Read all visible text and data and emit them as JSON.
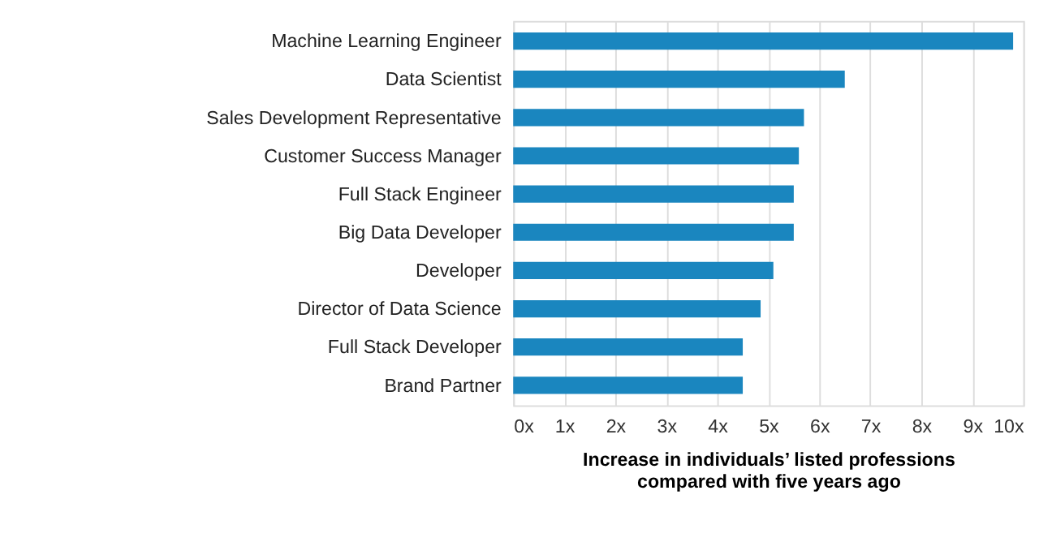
{
  "chart_data": {
    "type": "bar",
    "orientation": "horizontal",
    "categories": [
      "Machine Learning Engineer",
      "Data Scientist",
      "Sales Development Representative",
      "Customer Success Manager",
      "Full Stack Engineer",
      "Big Data Developer",
      "Developer",
      "Director of Data Science",
      "Full Stack Developer",
      "Brand Partner"
    ],
    "values": [
      9.8,
      6.5,
      5.7,
      5.6,
      5.5,
      5.5,
      5.1,
      4.85,
      4.5,
      4.5
    ],
    "color": "#1a86bf",
    "xlabel": "Increase in individuals’ listed professions\ncompared with five years ago",
    "xlim": [
      0,
      10
    ],
    "xticks": [
      {
        "value": 0,
        "label": "0x"
      },
      {
        "value": 1,
        "label": "1x"
      },
      {
        "value": 2,
        "label": "2x"
      },
      {
        "value": 3,
        "label": "3x"
      },
      {
        "value": 4,
        "label": "4x"
      },
      {
        "value": 5,
        "label": "5x"
      },
      {
        "value": 6,
        "label": "6x"
      },
      {
        "value": 7,
        "label": "7x"
      },
      {
        "value": 8,
        "label": "8x"
      },
      {
        "value": 9,
        "label": "9x"
      },
      {
        "value": 10,
        "label": "10x"
      }
    ],
    "grid": "x"
  }
}
